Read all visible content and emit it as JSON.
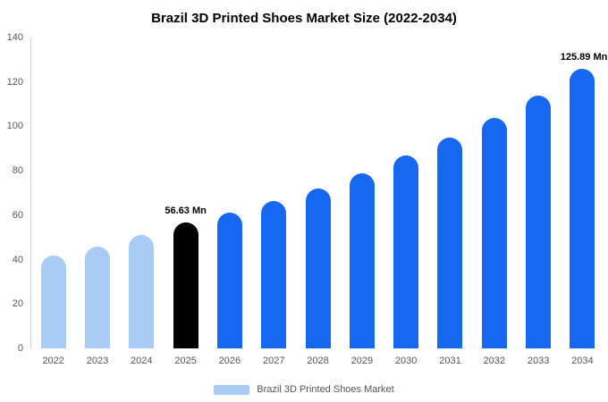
{
  "title": "Brazil 3D Printed Shoes Market Size (2022-2034)",
  "legend": {
    "label": "Brazil 3D Printed Shoes Market",
    "swatch_color": "#a9ccf6"
  },
  "colors": {
    "light_blue": "#a9ccf6",
    "blue": "#1668f0",
    "highlight_black": "#000000",
    "axis_text": "#555555"
  },
  "chart_data": {
    "type": "bar",
    "title": "Brazil 3D Printed Shoes Market Size (2022-2034)",
    "xlabel": "",
    "ylabel": "",
    "ylim": [
      0,
      140
    ],
    "yticks": [
      0,
      20,
      40,
      60,
      80,
      100,
      120,
      140
    ],
    "grid": false,
    "legend_position": "bottom",
    "categories": [
      "2022",
      "2023",
      "2024",
      "2025",
      "2026",
      "2027",
      "2028",
      "2029",
      "2030",
      "2031",
      "2032",
      "2033",
      "2034"
    ],
    "values": [
      42,
      46,
      51,
      56.63,
      61,
      66.5,
      72,
      79,
      87,
      95,
      104,
      114,
      125.89
    ],
    "bar_colors": [
      "#a9ccf6",
      "#a9ccf6",
      "#a9ccf6",
      "#000000",
      "#1668f0",
      "#1668f0",
      "#1668f0",
      "#1668f0",
      "#1668f0",
      "#1668f0",
      "#1668f0",
      "#1668f0",
      "#1668f0"
    ],
    "annotations": [
      {
        "index": 3,
        "text": "56.63 Mn"
      },
      {
        "index": 12,
        "text": "125.89 Mn"
      }
    ],
    "series_name": "Brazil 3D Printed Shoes Market"
  }
}
